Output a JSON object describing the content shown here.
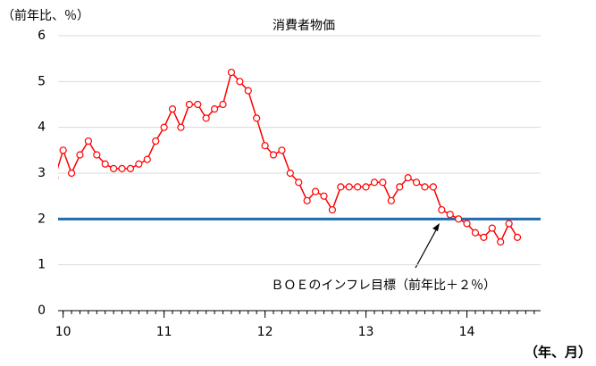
{
  "chart_data": {
    "type": "line",
    "title": "消費者物価",
    "y_label": "（前年比、％）",
    "x_label": "（年、月）",
    "xlim": [
      9.95,
      14.73
    ],
    "xticks": [
      10,
      11,
      12,
      13,
      14
    ],
    "ylim": [
      0,
      6
    ],
    "yticks": [
      0,
      1,
      2,
      3,
      4,
      5,
      6
    ],
    "grid": true,
    "x": [
      9.9167,
      10,
      10.0833,
      10.1667,
      10.25,
      10.3333,
      10.4167,
      10.5,
      10.5833,
      10.6667,
      10.75,
      10.8333,
      10.9167,
      11,
      11.0833,
      11.1667,
      11.25,
      11.3333,
      11.4167,
      11.5,
      11.5833,
      11.6667,
      11.75,
      11.8333,
      11.9167,
      12,
      12.0833,
      12.1667,
      12.25,
      12.3333,
      12.4167,
      12.5,
      12.5833,
      12.6667,
      12.75,
      12.8333,
      12.9167,
      13,
      13.0833,
      13.1667,
      13.25,
      13.3333,
      13.4167,
      13.5,
      13.5833,
      13.6667,
      13.75,
      13.8333,
      13.9167,
      14,
      14.0833,
      14.1667,
      14.25,
      14.3333,
      14.4167,
      14.5
    ],
    "series": [
      {
        "name": "消費者物価",
        "color": "#ff0000",
        "values": [
          2.9,
          3.5,
          3.0,
          3.4,
          3.7,
          3.4,
          3.2,
          3.1,
          3.1,
          3.1,
          3.2,
          3.3,
          3.7,
          4.0,
          4.4,
          4.0,
          4.5,
          4.5,
          4.2,
          4.4,
          4.5,
          5.2,
          5.0,
          4.8,
          4.2,
          3.6,
          3.4,
          3.5,
          3.0,
          2.8,
          2.4,
          2.6,
          2.5,
          2.2,
          2.7,
          2.7,
          2.7,
          2.7,
          2.8,
          2.8,
          2.4,
          2.7,
          2.9,
          2.8,
          2.7,
          2.7,
          2.2,
          2.1,
          2.0,
          1.9,
          1.7,
          1.6,
          1.8,
          1.5,
          1.9,
          1.6
        ]
      }
    ],
    "reference_line": {
      "value": 2,
      "color": "#1f6bb0",
      "label": "ＢＯＥのインフレ目標（前年比＋２％）"
    }
  }
}
